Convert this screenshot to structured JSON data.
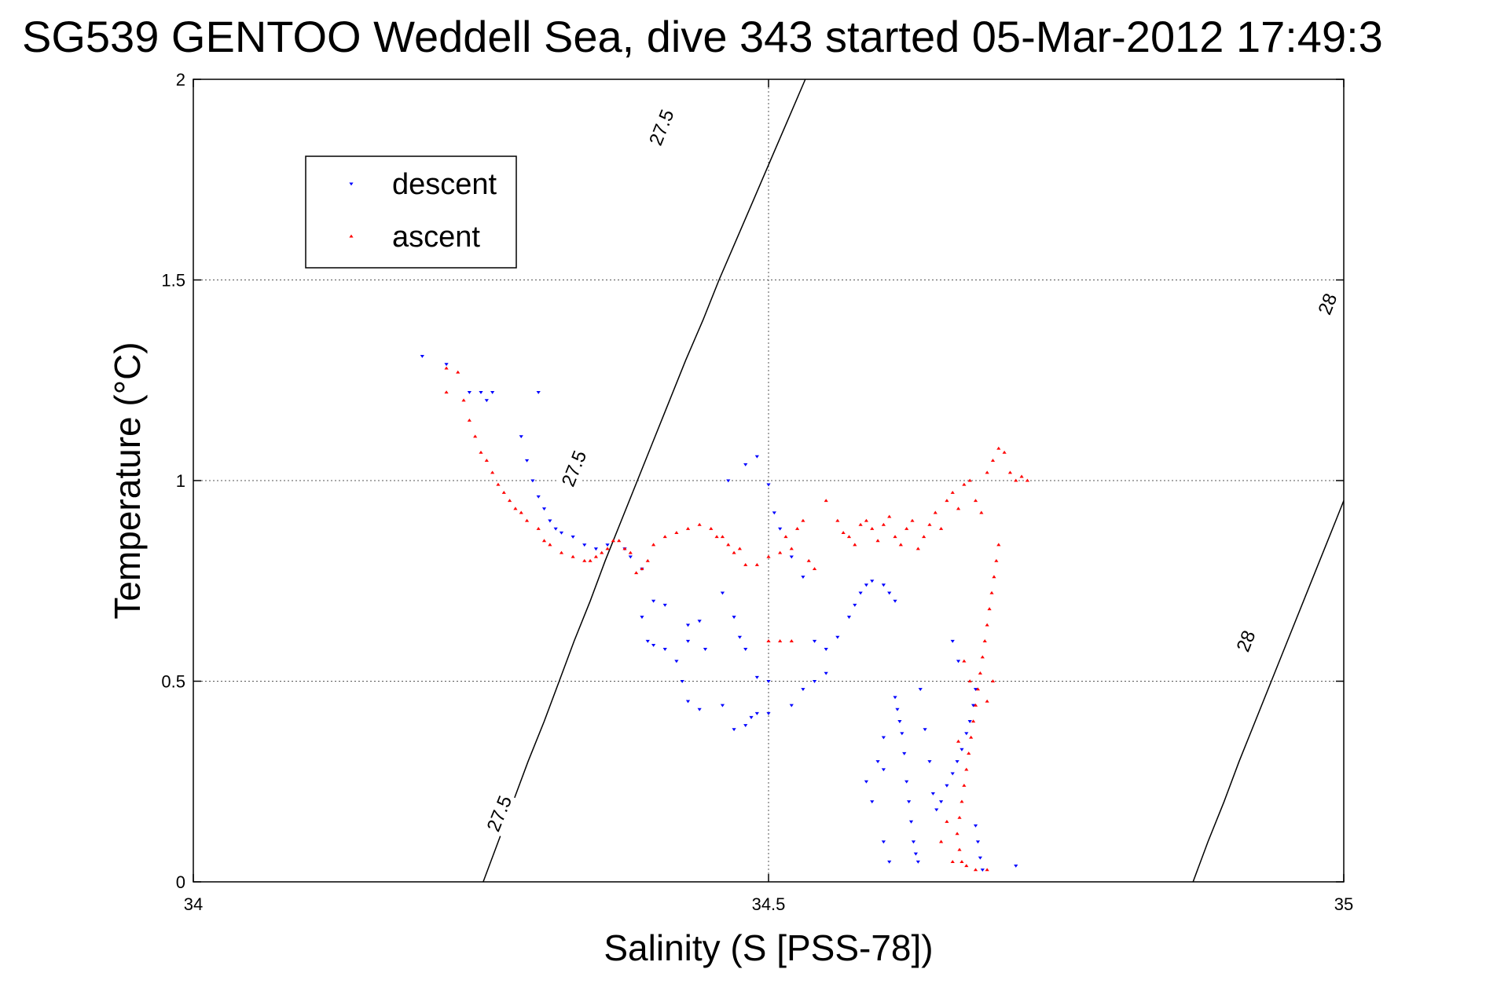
{
  "chart_data": {
    "type": "scatter",
    "title": "SG539 GENTOO Weddell Sea, dive 343 started 05-Mar-2012 17:49:3",
    "xlabel": "Salinity (S [PSS-78])",
    "ylabel": "Temperature (°C)",
    "xlim": [
      34,
      35
    ],
    "ylim": [
      0,
      2
    ],
    "x_ticks": [
      {
        "value": 34,
        "label": "34"
      },
      {
        "value": 34.5,
        "label": "34.5"
      },
      {
        "value": 35,
        "label": "35"
      }
    ],
    "y_ticks": [
      {
        "value": 0,
        "label": "0"
      },
      {
        "value": 0.5,
        "label": "0.5"
      },
      {
        "value": 1,
        "label": "1"
      },
      {
        "value": 1.5,
        "label": "1.5"
      },
      {
        "value": 2,
        "label": "2"
      }
    ],
    "grid": true,
    "legend": {
      "placement": "top-left",
      "entries": [
        "descent",
        "ascent"
      ]
    },
    "colors": {
      "descent": "#0000ff",
      "ascent": "#ff0000",
      "contour": "#000000",
      "grid": "#555555"
    },
    "contours": [
      {
        "value": 27.5,
        "points": [
          [
            34.252,
            0
          ],
          [
            34.265,
            0.1
          ],
          [
            34.278,
            0.2
          ],
          [
            34.291,
            0.3
          ],
          [
            34.305,
            0.4
          ],
          [
            34.318,
            0.5
          ],
          [
            34.331,
            0.6
          ],
          [
            34.345,
            0.7
          ],
          [
            34.358,
            0.8
          ],
          [
            34.372,
            0.9
          ],
          [
            34.386,
            1.0
          ],
          [
            34.4,
            1.1
          ],
          [
            34.414,
            1.2
          ],
          [
            34.428,
            1.3
          ],
          [
            34.443,
            1.4
          ],
          [
            34.457,
            1.5
          ],
          [
            34.472,
            1.6
          ],
          [
            34.487,
            1.7
          ],
          [
            34.502,
            1.8
          ],
          [
            34.517,
            1.9
          ],
          [
            34.532,
            2.0
          ]
        ],
        "labels": [
          {
            "text": "27.5",
            "at": [
              34.266,
              0.17
            ]
          },
          {
            "text": "27.5",
            "at": [
              34.331,
              1.03
            ]
          },
          {
            "text": "27.5",
            "at": [
              34.407,
              1.88
            ]
          }
        ]
      },
      {
        "value": 28,
        "points": [
          [
            34.869,
            0
          ],
          [
            34.882,
            0.1
          ],
          [
            34.896,
            0.2
          ],
          [
            34.909,
            0.3
          ],
          [
            34.923,
            0.4
          ],
          [
            34.937,
            0.5
          ],
          [
            34.951,
            0.6
          ],
          [
            34.965,
            0.7
          ],
          [
            34.979,
            0.8
          ],
          [
            34.993,
            0.9
          ],
          [
            35.0,
            0.95
          ]
        ],
        "labels": [
          {
            "text": "28",
            "at": [
              34.915,
              0.6
            ]
          },
          {
            "text": "28",
            "at": [
              34.986,
              1.44
            ]
          }
        ]
      }
    ],
    "series": [
      {
        "name": "descent",
        "marker": "triangle-down",
        "points": [
          [
            34.199,
            1.31
          ],
          [
            34.22,
            1.29
          ],
          [
            34.24,
            1.22
          ],
          [
            34.25,
            1.22
          ],
          [
            34.255,
            1.2
          ],
          [
            34.26,
            1.22
          ],
          [
            34.3,
            1.22
          ],
          [
            34.285,
            1.11
          ],
          [
            34.29,
            1.05
          ],
          [
            34.295,
            1.0
          ],
          [
            34.3,
            0.96
          ],
          [
            34.305,
            0.93
          ],
          [
            34.31,
            0.9
          ],
          [
            34.315,
            0.88
          ],
          [
            34.32,
            0.87
          ],
          [
            34.33,
            0.86
          ],
          [
            34.34,
            0.84
          ],
          [
            34.35,
            0.83
          ],
          [
            34.36,
            0.84
          ],
          [
            34.375,
            0.83
          ],
          [
            34.38,
            0.81
          ],
          [
            34.39,
            0.78
          ],
          [
            34.4,
            0.7
          ],
          [
            34.41,
            0.69
          ],
          [
            34.39,
            0.66
          ],
          [
            34.395,
            0.6
          ],
          [
            34.4,
            0.59
          ],
          [
            34.41,
            0.58
          ],
          [
            34.42,
            0.55
          ],
          [
            34.43,
            0.64
          ],
          [
            34.44,
            0.65
          ],
          [
            34.43,
            0.6
          ],
          [
            34.425,
            0.5
          ],
          [
            34.43,
            0.45
          ],
          [
            34.44,
            0.43
          ],
          [
            34.445,
            0.58
          ],
          [
            34.46,
            0.72
          ],
          [
            34.47,
            0.66
          ],
          [
            34.475,
            0.61
          ],
          [
            34.48,
            0.58
          ],
          [
            34.49,
            0.51
          ],
          [
            34.5,
            0.5
          ],
          [
            34.485,
            0.41
          ],
          [
            34.49,
            0.42
          ],
          [
            34.5,
            0.42
          ],
          [
            34.47,
            0.38
          ],
          [
            34.48,
            0.39
          ],
          [
            34.46,
            0.44
          ],
          [
            34.465,
            1.0
          ],
          [
            34.48,
            1.04
          ],
          [
            34.49,
            1.06
          ],
          [
            34.5,
            0.99
          ],
          [
            34.505,
            0.92
          ],
          [
            34.51,
            0.88
          ],
          [
            34.52,
            0.81
          ],
          [
            34.53,
            0.76
          ],
          [
            34.54,
            0.6
          ],
          [
            34.55,
            0.58
          ],
          [
            34.52,
            0.44
          ],
          [
            34.53,
            0.48
          ],
          [
            34.54,
            0.5
          ],
          [
            34.55,
            0.52
          ],
          [
            34.56,
            0.61
          ],
          [
            34.57,
            0.66
          ],
          [
            34.575,
            0.69
          ],
          [
            34.58,
            0.72
          ],
          [
            34.585,
            0.74
          ],
          [
            34.59,
            0.75
          ],
          [
            34.6,
            0.74
          ],
          [
            34.605,
            0.72
          ],
          [
            34.61,
            0.7
          ],
          [
            34.585,
            0.25
          ],
          [
            34.59,
            0.2
          ],
          [
            34.595,
            0.3
          ],
          [
            34.6,
            0.36
          ],
          [
            34.6,
            0.28
          ],
          [
            34.6,
            0.1
          ],
          [
            34.605,
            0.05
          ],
          [
            34.61,
            0.46
          ],
          [
            34.612,
            0.43
          ],
          [
            34.614,
            0.4
          ],
          [
            34.616,
            0.37
          ],
          [
            34.618,
            0.32
          ],
          [
            34.62,
            0.25
          ],
          [
            34.622,
            0.2
          ],
          [
            34.624,
            0.15
          ],
          [
            34.626,
            0.1
          ],
          [
            34.628,
            0.07
          ],
          [
            34.63,
            0.05
          ],
          [
            34.632,
            0.48
          ],
          [
            34.636,
            0.38
          ],
          [
            34.64,
            0.3
          ],
          [
            34.643,
            0.22
          ],
          [
            34.646,
            0.18
          ],
          [
            34.65,
            0.2
          ],
          [
            34.655,
            0.24
          ],
          [
            34.66,
            0.27
          ],
          [
            34.664,
            0.3
          ],
          [
            34.668,
            0.33
          ],
          [
            34.672,
            0.37
          ],
          [
            34.675,
            0.4
          ],
          [
            34.678,
            0.44
          ],
          [
            34.68,
            0.48
          ],
          [
            34.68,
            0.14
          ],
          [
            34.682,
            0.1
          ],
          [
            34.684,
            0.06
          ],
          [
            34.686,
            0.03
          ],
          [
            34.66,
            0.6
          ],
          [
            34.665,
            0.55
          ],
          [
            34.715,
            0.04
          ]
        ]
      },
      {
        "name": "ascent",
        "marker": "triangle-up",
        "points": [
          [
            34.22,
            1.28
          ],
          [
            34.23,
            1.27
          ],
          [
            34.22,
            1.22
          ],
          [
            34.235,
            1.2
          ],
          [
            34.24,
            1.15
          ],
          [
            34.245,
            1.11
          ],
          [
            34.25,
            1.07
          ],
          [
            34.255,
            1.05
          ],
          [
            34.26,
            1.02
          ],
          [
            34.265,
            0.99
          ],
          [
            34.27,
            0.97
          ],
          [
            34.275,
            0.95
          ],
          [
            34.28,
            0.93
          ],
          [
            34.285,
            0.92
          ],
          [
            34.29,
            0.9
          ],
          [
            34.3,
            0.88
          ],
          [
            34.305,
            0.85
          ],
          [
            34.31,
            0.84
          ],
          [
            34.32,
            0.82
          ],
          [
            34.33,
            0.81
          ],
          [
            34.34,
            0.8
          ],
          [
            34.345,
            0.8
          ],
          [
            34.35,
            0.81
          ],
          [
            34.355,
            0.82
          ],
          [
            34.36,
            0.83
          ],
          [
            34.365,
            0.85
          ],
          [
            34.37,
            0.85
          ],
          [
            34.375,
            0.83
          ],
          [
            34.38,
            0.82
          ],
          [
            34.385,
            0.77
          ],
          [
            34.39,
            0.78
          ],
          [
            34.395,
            0.8
          ],
          [
            34.4,
            0.84
          ],
          [
            34.41,
            0.86
          ],
          [
            34.42,
            0.87
          ],
          [
            34.43,
            0.88
          ],
          [
            34.44,
            0.89
          ],
          [
            34.45,
            0.88
          ],
          [
            34.455,
            0.86
          ],
          [
            34.46,
            0.86
          ],
          [
            34.465,
            0.84
          ],
          [
            34.47,
            0.82
          ],
          [
            34.475,
            0.83
          ],
          [
            34.48,
            0.79
          ],
          [
            34.49,
            0.79
          ],
          [
            34.5,
            0.81
          ],
          [
            34.51,
            0.82
          ],
          [
            34.52,
            0.83
          ],
          [
            34.515,
            0.86
          ],
          [
            34.525,
            0.88
          ],
          [
            34.53,
            0.9
          ],
          [
            34.535,
            0.8
          ],
          [
            34.54,
            0.78
          ],
          [
            34.5,
            0.6
          ],
          [
            34.51,
            0.6
          ],
          [
            34.52,
            0.6
          ],
          [
            34.55,
            0.95
          ],
          [
            34.56,
            0.9
          ],
          [
            34.565,
            0.87
          ],
          [
            34.57,
            0.86
          ],
          [
            34.575,
            0.84
          ],
          [
            34.58,
            0.89
          ],
          [
            34.585,
            0.9
          ],
          [
            34.59,
            0.88
          ],
          [
            34.595,
            0.85
          ],
          [
            34.6,
            0.89
          ],
          [
            34.605,
            0.91
          ],
          [
            34.61,
            0.86
          ],
          [
            34.615,
            0.84
          ],
          [
            34.62,
            0.88
          ],
          [
            34.625,
            0.9
          ],
          [
            34.63,
            0.83
          ],
          [
            34.635,
            0.86
          ],
          [
            34.64,
            0.89
          ],
          [
            34.645,
            0.92
          ],
          [
            34.65,
            0.88
          ],
          [
            34.655,
            0.95
          ],
          [
            34.66,
            0.97
          ],
          [
            34.665,
            0.93
          ],
          [
            34.67,
            0.99
          ],
          [
            34.675,
            1.0
          ],
          [
            34.68,
            0.95
          ],
          [
            34.685,
            0.92
          ],
          [
            34.69,
            1.02
          ],
          [
            34.695,
            1.05
          ],
          [
            34.7,
            1.08
          ],
          [
            34.705,
            1.07
          ],
          [
            34.71,
            1.02
          ],
          [
            34.715,
            1.0
          ],
          [
            34.72,
            1.01
          ],
          [
            34.725,
            1.0
          ],
          [
            34.7,
            0.84
          ],
          [
            34.698,
            0.8
          ],
          [
            34.696,
            0.76
          ],
          [
            34.694,
            0.72
          ],
          [
            34.692,
            0.68
          ],
          [
            34.69,
            0.64
          ],
          [
            34.688,
            0.6
          ],
          [
            34.686,
            0.56
          ],
          [
            34.684,
            0.52
          ],
          [
            34.682,
            0.48
          ],
          [
            34.68,
            0.44
          ],
          [
            34.678,
            0.4
          ],
          [
            34.676,
            0.36
          ],
          [
            34.674,
            0.32
          ],
          [
            34.672,
            0.28
          ],
          [
            34.67,
            0.24
          ],
          [
            34.668,
            0.2
          ],
          [
            34.666,
            0.16
          ],
          [
            34.664,
            0.12
          ],
          [
            34.666,
            0.08
          ],
          [
            34.668,
            0.05
          ],
          [
            34.672,
            0.04
          ],
          [
            34.68,
            0.03
          ],
          [
            34.69,
            0.03
          ],
          [
            34.655,
            0.15
          ],
          [
            34.65,
            0.1
          ],
          [
            34.66,
            0.05
          ],
          [
            34.665,
            0.35
          ],
          [
            34.67,
            0.55
          ],
          [
            34.675,
            0.5
          ],
          [
            34.69,
            0.45
          ],
          [
            34.695,
            0.5
          ]
        ]
      }
    ]
  }
}
